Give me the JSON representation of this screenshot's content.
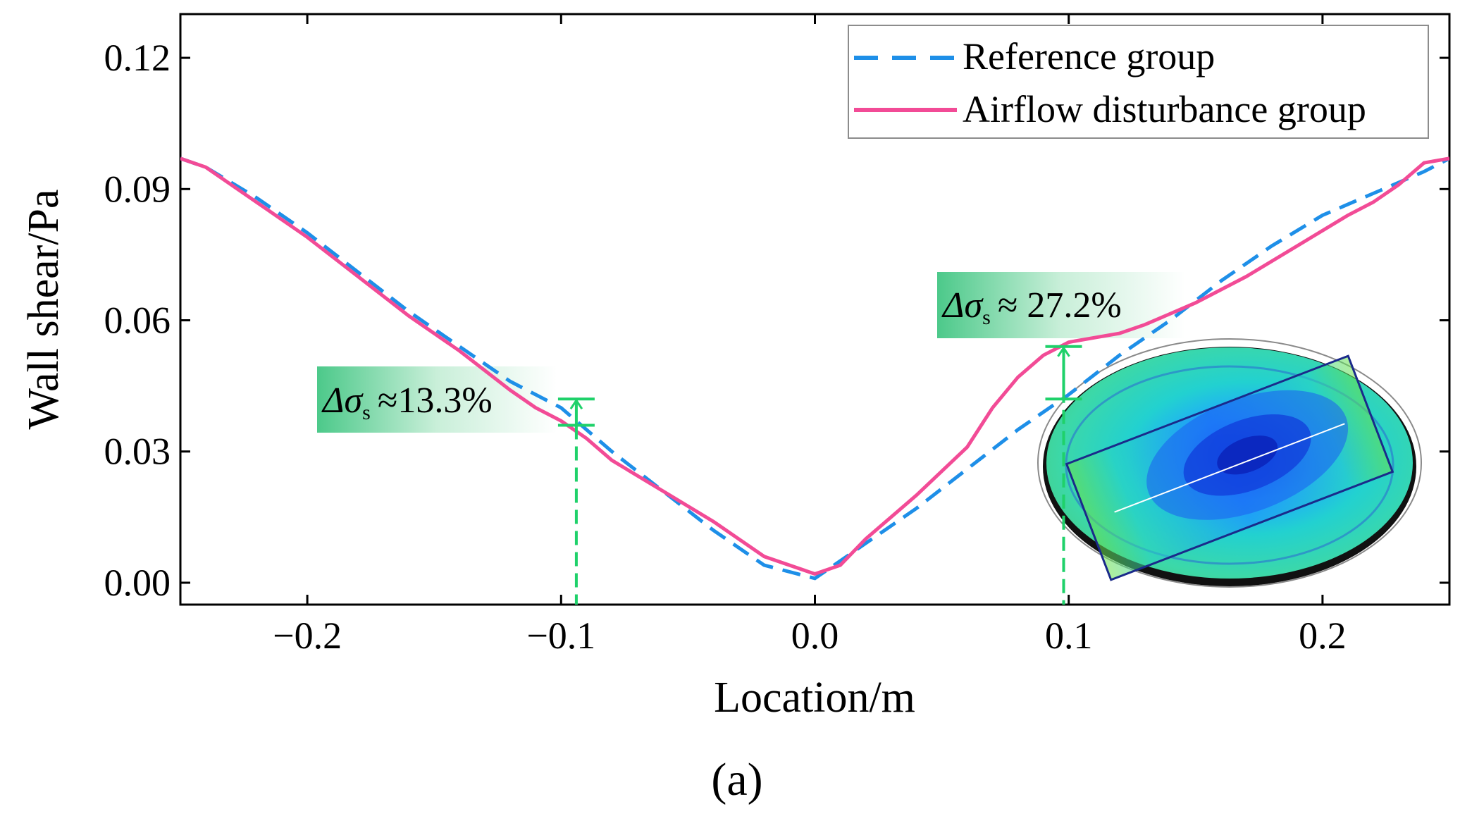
{
  "colors": {
    "reference": "#1e8fe8",
    "airflow": "#f24b96",
    "annotation": "#1fd16a",
    "axis": "#000000"
  },
  "chart_data": {
    "type": "line",
    "title": "",
    "panel_label": "(a)",
    "xlabel": "Location/m",
    "ylabel": "Wall shear/Pa",
    "xlim": [
      -0.25,
      0.25
    ],
    "ylim": [
      -0.005,
      0.13
    ],
    "xticks": [
      -0.2,
      -0.1,
      0.0,
      0.1,
      0.2
    ],
    "xtick_labels": [
      "−0.2",
      "−0.1",
      "0.0",
      "0.1",
      "0.2"
    ],
    "yticks": [
      0.0,
      0.03,
      0.06,
      0.09,
      0.12
    ],
    "ytick_labels": [
      "0.00",
      "0.03",
      "0.06",
      "0.09",
      "0.12"
    ],
    "legend_position": "top-right",
    "series": [
      {
        "name": "Reference group",
        "style": "dashed",
        "x": [
          -0.25,
          -0.24,
          -0.22,
          -0.2,
          -0.18,
          -0.16,
          -0.14,
          -0.12,
          -0.1,
          -0.08,
          -0.06,
          -0.04,
          -0.02,
          0.0,
          0.02,
          0.04,
          0.06,
          0.08,
          0.1,
          0.12,
          0.14,
          0.16,
          0.18,
          0.2,
          0.22,
          0.24,
          0.25
        ],
        "y": [
          0.097,
          0.095,
          0.088,
          0.08,
          0.071,
          0.062,
          0.054,
          0.046,
          0.04,
          0.03,
          0.021,
          0.012,
          0.004,
          0.001,
          0.009,
          0.017,
          0.026,
          0.035,
          0.043,
          0.052,
          0.06,
          0.069,
          0.077,
          0.084,
          0.089,
          0.094,
          0.097
        ]
      },
      {
        "name": "Airflow disturbance group",
        "style": "solid",
        "x": [
          -0.25,
          -0.24,
          -0.22,
          -0.2,
          -0.18,
          -0.16,
          -0.14,
          -0.12,
          -0.11,
          -0.1,
          -0.09,
          -0.08,
          -0.06,
          -0.04,
          -0.02,
          0.0,
          0.01,
          0.02,
          0.04,
          0.06,
          0.07,
          0.08,
          0.09,
          0.1,
          0.11,
          0.12,
          0.13,
          0.15,
          0.17,
          0.19,
          0.21,
          0.22,
          0.23,
          0.24,
          0.25
        ],
        "y": [
          0.097,
          0.095,
          0.087,
          0.079,
          0.07,
          0.061,
          0.053,
          0.044,
          0.04,
          0.037,
          0.033,
          0.028,
          0.021,
          0.014,
          0.006,
          0.002,
          0.004,
          0.01,
          0.02,
          0.031,
          0.04,
          0.047,
          0.052,
          0.055,
          0.056,
          0.057,
          0.059,
          0.064,
          0.07,
          0.077,
          0.084,
          0.087,
          0.091,
          0.096,
          0.097
        ]
      }
    ],
    "annotations": [
      {
        "label": "Δσs ≈13.3%",
        "symbol": "Δσ",
        "subscript": "s",
        "value": "≈13.3%",
        "x": -0.094,
        "y_reference": 0.042,
        "y_airflow": 0.036
      },
      {
        "label": "Δσs ≈ 27.2%",
        "symbol": "Δσ",
        "subscript": "s",
        "value": "≈ 27.2%",
        "x": 0.098,
        "y_reference": 0.042,
        "y_airflow": 0.054
      }
    ],
    "inset": "simulated wall shear contour plot of rectangular plate in elliptical chamber"
  }
}
